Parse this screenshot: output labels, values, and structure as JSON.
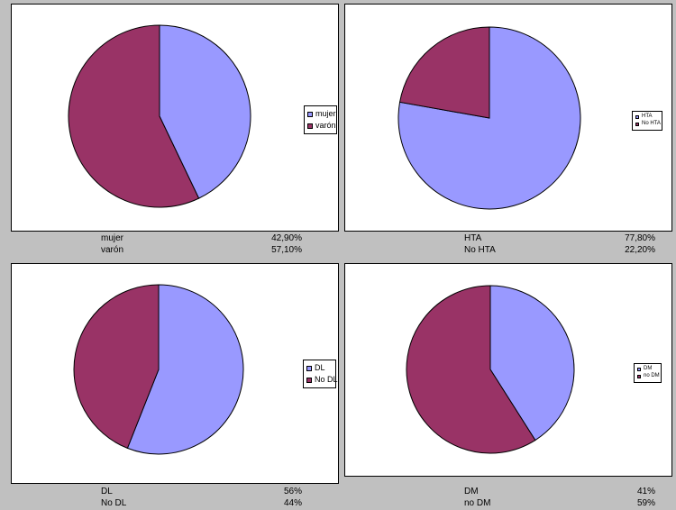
{
  "colors": {
    "slice_1": "#9999ff",
    "slice_2": "#993366",
    "border": "#000000",
    "background": "#c0c0c0"
  },
  "chart_data": [
    {
      "type": "pie",
      "categories": [
        "mujer",
        "varón"
      ],
      "values": [
        42.9,
        57.1
      ],
      "legend": {
        "placement": "right",
        "entries": [
          "mujer",
          "varón"
        ]
      },
      "table": [
        {
          "label": "mujer",
          "value": "42,90%"
        },
        {
          "label": "varón",
          "value": "57,10%"
        }
      ]
    },
    {
      "type": "pie",
      "categories": [
        "HTA",
        "No HTA"
      ],
      "values": [
        77.8,
        22.2
      ],
      "legend": {
        "placement": "right",
        "entries": [
          "HTA",
          "No HTA"
        ]
      },
      "table": [
        {
          "label": "HTA",
          "value": "77,80%"
        },
        {
          "label": "No HTA",
          "value": "22,20%"
        }
      ]
    },
    {
      "type": "pie",
      "categories": [
        "DL",
        "No DL"
      ],
      "values": [
        56,
        44
      ],
      "legend": {
        "placement": "right",
        "entries": [
          "DL",
          "No DL"
        ]
      },
      "table": [
        {
          "label": "DL",
          "value": "56%"
        },
        {
          "label": "No DL",
          "value": "44%"
        }
      ]
    },
    {
      "type": "pie",
      "categories": [
        "DM",
        "no DM"
      ],
      "values": [
        41,
        59
      ],
      "legend": {
        "placement": "right",
        "entries": [
          "DM",
          "no DM"
        ]
      },
      "table": [
        {
          "label": "DM",
          "value": "41%"
        },
        {
          "label": "no DM",
          "value": "59%"
        }
      ]
    }
  ]
}
